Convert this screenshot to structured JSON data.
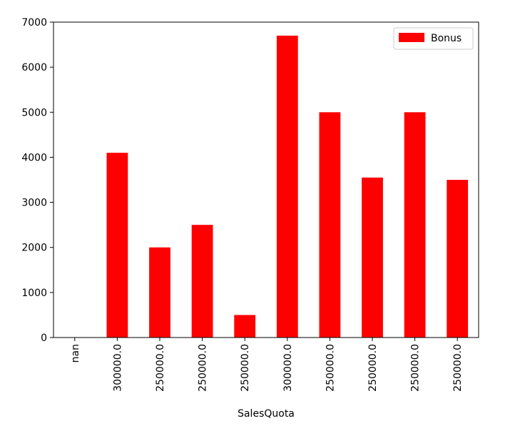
{
  "chart_data": {
    "type": "bar",
    "categories": [
      "nan",
      "300000.0",
      "250000.0",
      "250000.0",
      "250000.0",
      "300000.0",
      "250000.0",
      "250000.0",
      "250000.0",
      "250000.0"
    ],
    "series": [
      {
        "name": "Bonus",
        "color": "#ff0000",
        "values": [
          0,
          4100,
          2000,
          2500,
          500,
          6700,
          5000,
          3550,
          5000,
          3500
        ]
      }
    ],
    "xlabel": "SalesQuota",
    "ylabel": "",
    "ylim": [
      0,
      7000
    ],
    "yticks": [
      "0",
      "1000",
      "2000",
      "3000",
      "4000",
      "5000",
      "6000",
      "7000"
    ],
    "legend_position": "top-right",
    "grid": false
  }
}
